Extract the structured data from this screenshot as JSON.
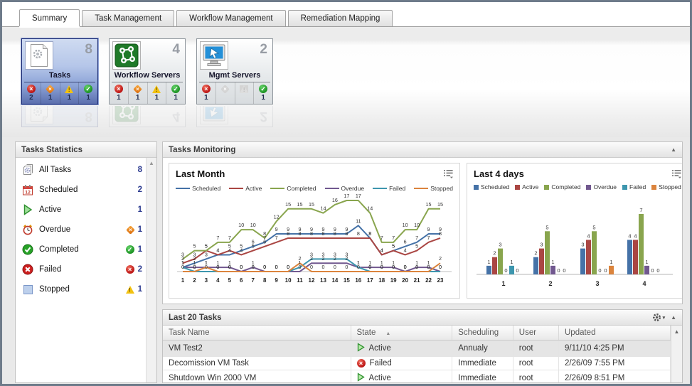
{
  "tabs": [
    {
      "label": "Summary",
      "active": true
    },
    {
      "label": "Task Management",
      "active": false
    },
    {
      "label": "Workflow Management",
      "active": false
    },
    {
      "label": "Remediation Mapping",
      "active": false
    }
  ],
  "colors": {
    "status_error": "#bb1414",
    "status_overdue": "#e07a18",
    "status_warning": "#f2c212",
    "status_ok": "#1b9222",
    "count_navy": "#2b3a8f",
    "selected_card_border": "#1f2d72"
  },
  "cards": [
    {
      "name": "Tasks",
      "count": "8",
      "icon": "tasks-page-gear-icon",
      "selected": true,
      "statuses": [
        {
          "type": "error",
          "count": "2"
        },
        {
          "type": "overdue",
          "count": "1"
        },
        {
          "type": "warning",
          "count": "1"
        },
        {
          "type": "ok",
          "count": "1"
        }
      ]
    },
    {
      "name": "Workflow Servers",
      "count": "4",
      "icon": "workflow-nodes-icon",
      "selected": false,
      "statuses": [
        {
          "type": "error",
          "count": "1"
        },
        {
          "type": "overdue",
          "count": "1"
        },
        {
          "type": "warning",
          "count": "1"
        },
        {
          "type": "ok",
          "count": "1"
        }
      ]
    },
    {
      "name": "Mgmt Servers",
      "count": "2",
      "icon": "mgmt-monitor-cursor-icon",
      "selected": false,
      "statuses": [
        {
          "type": "error",
          "count": "1"
        },
        {
          "type": "overdue-disabled",
          "count": ""
        },
        {
          "type": "warning-disabled",
          "count": ""
        },
        {
          "type": "ok",
          "count": "1"
        }
      ]
    }
  ],
  "sidebar": {
    "title": "Tasks Statistics",
    "items": [
      {
        "icon": "all-tasks-icon",
        "label": "All Tasks",
        "badge": "",
        "count": "8"
      },
      {
        "icon": "calendar-icon",
        "label": "Scheduled",
        "badge": "",
        "count": "2"
      },
      {
        "icon": "play-icon",
        "label": "Active",
        "badge": "",
        "count": "1"
      },
      {
        "icon": "alarm-clock-icon",
        "label": "Overdue",
        "badge": "overdue",
        "count": "1"
      },
      {
        "icon": "check-circle-icon",
        "label": "Completed",
        "badge": "ok",
        "count": "1"
      },
      {
        "icon": "x-circle-icon",
        "label": "Failed",
        "badge": "error",
        "count": "2"
      },
      {
        "icon": "stopped-square-icon",
        "label": "Stopped",
        "badge": "warning",
        "count": "1"
      }
    ]
  },
  "monitoring": {
    "title": "Tasks Monitoring",
    "collapse_icon": "up-triangle",
    "menu_icon": "list-dropdown"
  },
  "chart_data": [
    {
      "type": "line",
      "title": "Last Month",
      "legend_position": "top",
      "x": [
        1,
        2,
        3,
        4,
        5,
        6,
        7,
        8,
        9,
        10,
        11,
        12,
        13,
        14,
        15,
        16,
        17,
        18,
        19,
        20,
        21,
        22,
        23
      ],
      "ylim": [
        0,
        17
      ],
      "grid": false,
      "data_labels": true,
      "series": [
        {
          "name": "Scheduled",
          "color": "#4572A7",
          "values": [
            1,
            2,
            3,
            4,
            4,
            5,
            6,
            7,
            9,
            9,
            9,
            9,
            9,
            9,
            9,
            11,
            8,
            4,
            5,
            6,
            7,
            9,
            9
          ]
        },
        {
          "name": "Active",
          "color": "#AA4643",
          "values": [
            2,
            3,
            5,
            4,
            5,
            4,
            5,
            6,
            7,
            8,
            8,
            8,
            8,
            8,
            8,
            8,
            8,
            4,
            5,
            4,
            5,
            7,
            8
          ]
        },
        {
          "name": "Completed",
          "color": "#89A54E",
          "values": [
            3,
            5,
            5,
            7,
            7,
            10,
            10,
            8,
            12,
            15,
            15,
            15,
            14,
            16,
            17,
            17,
            14,
            7,
            7,
            10,
            10,
            15,
            15
          ]
        },
        {
          "name": "Overdue",
          "color": "#71588F",
          "values": [
            1,
            1,
            1,
            1,
            1,
            0,
            1,
            0,
            0,
            0,
            0,
            2,
            2,
            2,
            2,
            1,
            1,
            1,
            1,
            0,
            1,
            1,
            0
          ]
        },
        {
          "name": "Failed",
          "color": "#3D96AE",
          "values": [
            1,
            0,
            0,
            0,
            0,
            0,
            0,
            0,
            0,
            0,
            1,
            3,
            3,
            3,
            3,
            1,
            0,
            0,
            0,
            0,
            0,
            0,
            0
          ]
        },
        {
          "name": "Stopped",
          "color": "#DB843D",
          "values": [
            0,
            0,
            1,
            0,
            0,
            0,
            0,
            0,
            0,
            0,
            2,
            0,
            0,
            0,
            0,
            0,
            0,
            0,
            0,
            0,
            0,
            0,
            2
          ]
        }
      ]
    },
    {
      "type": "bar",
      "title": "Last 4 days",
      "legend_position": "top",
      "categories": [
        "1",
        "2",
        "3",
        "4"
      ],
      "ylim": [
        0,
        7
      ],
      "grid": false,
      "data_labels": true,
      "series": [
        {
          "name": "Scheduled",
          "color": "#4572A7",
          "values": [
            1,
            2,
            3,
            4
          ]
        },
        {
          "name": "Active",
          "color": "#AA4643",
          "values": [
            2,
            3,
            4,
            4
          ]
        },
        {
          "name": "Completed",
          "color": "#89A54E",
          "values": [
            3,
            5,
            5,
            7
          ]
        },
        {
          "name": "Overdue",
          "color": "#71588F",
          "values": [
            0,
            1,
            0,
            1
          ]
        },
        {
          "name": "Failed",
          "color": "#3D96AE",
          "values": [
            1,
            0,
            0,
            0
          ]
        },
        {
          "name": "Stopped",
          "color": "#DB843D",
          "values": [
            0,
            0,
            1,
            0
          ]
        }
      ]
    }
  ],
  "tasks_table": {
    "title": "Last 20 Tasks",
    "header_icons": [
      "gear-dropdown",
      "up-triangle"
    ],
    "columns": [
      "Task Name",
      "State",
      "Scheduling",
      "User",
      "Updated"
    ],
    "sort": {
      "column": "State",
      "direction": "asc"
    },
    "rows": [
      {
        "task_name": "VM Test2",
        "state": "Active",
        "state_icon": "active-play",
        "scheduling": "Annualy",
        "user": "root",
        "updated": "9/11/10 4:25 PM",
        "selected": true
      },
      {
        "task_name": "Decomission VM Task",
        "state": "Failed",
        "state_icon": "failed-x",
        "scheduling": "Immediate",
        "user": "root",
        "updated": "2/26/09 7:55 PM",
        "selected": false
      },
      {
        "task_name": "Shutdown Win 2000 VM",
        "state": "Active",
        "state_icon": "active-play",
        "scheduling": "Immediate",
        "user": "root",
        "updated": "2/26/09 8:51 PM",
        "selected": false
      }
    ]
  }
}
